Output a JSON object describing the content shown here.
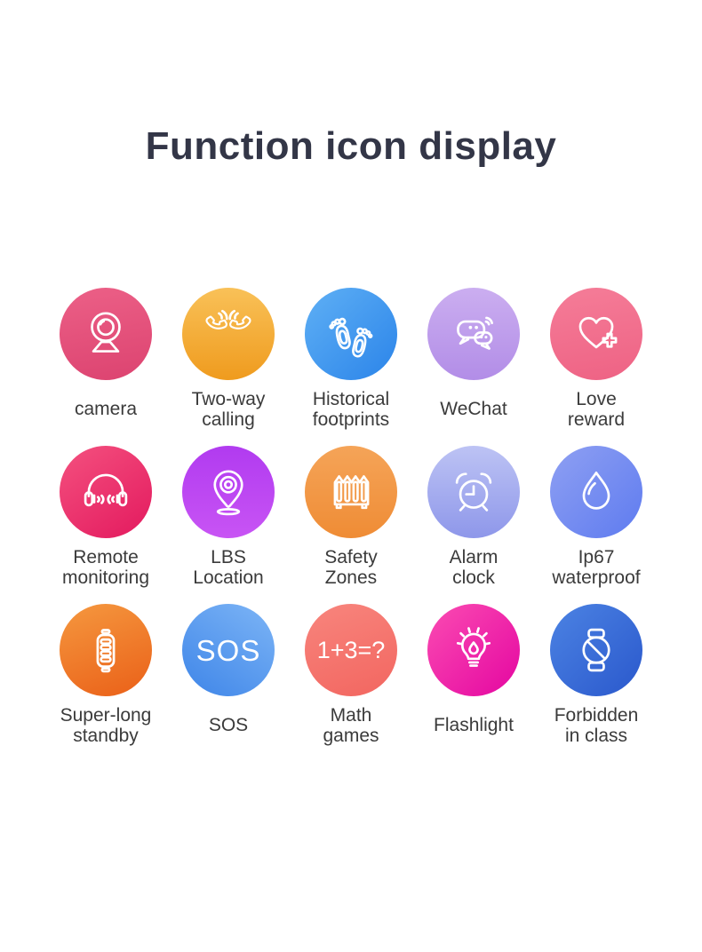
{
  "title": "Function icon display",
  "colors": {
    "background": "#ffffff",
    "title_text": "#333647",
    "label_text": "#3b3b3b",
    "icon_stroke": "#ffffff"
  },
  "functions": [
    {
      "id": "camera",
      "label_lines": [
        "camera"
      ],
      "icon": "webcam-icon",
      "gradient": {
        "from": "#ec6087",
        "to": "#dc4370",
        "angle": 170
      }
    },
    {
      "id": "two-way-calling",
      "label_lines": [
        "Two-way",
        "calling"
      ],
      "icon": "phone-handsets-icon",
      "gradient": {
        "from": "#f9c158",
        "to": "#ef9b1e",
        "angle": 180
      }
    },
    {
      "id": "historical-footprints",
      "label_lines": [
        "Historical",
        "footprints"
      ],
      "icon": "footprints-icon",
      "gradient": {
        "from": "#5fb0f5",
        "to": "#2b84e9",
        "angle": 135
      }
    },
    {
      "id": "wechat",
      "label_lines": [
        "WeChat"
      ],
      "icon": "chat-bubbles-icon",
      "gradient": {
        "from": "#cbaef0",
        "to": "#b28de7",
        "angle": 180
      }
    },
    {
      "id": "love-reward",
      "label_lines": [
        "Love",
        "reward"
      ],
      "icon": "heart-plus-icon",
      "gradient": {
        "from": "#f57d98",
        "to": "#ee6284",
        "angle": 170
      }
    },
    {
      "id": "remote-monitoring",
      "label_lines": [
        "Remote",
        "monitoring"
      ],
      "icon": "headphones-icon",
      "gradient": {
        "from": "#f4517f",
        "to": "#e3195e",
        "angle": 145
      }
    },
    {
      "id": "lbs-location",
      "label_lines": [
        "LBS",
        "Location"
      ],
      "icon": "location-pin-icon",
      "gradient": {
        "from": "#b13bf0",
        "to": "#c854f4",
        "angle": 180
      }
    },
    {
      "id": "safety-zones",
      "label_lines": [
        "Safety",
        "Zones"
      ],
      "icon": "fence-icon",
      "gradient": {
        "from": "#f5a458",
        "to": "#ef8c35",
        "angle": 180
      }
    },
    {
      "id": "alarm-clock",
      "label_lines": [
        "Alarm",
        "clock"
      ],
      "icon": "alarm-clock-icon",
      "gradient": {
        "from": "#bdc3f4",
        "to": "#8e97ea",
        "angle": 180
      }
    },
    {
      "id": "ip67-waterproof",
      "label_lines": [
        "Ip67",
        "waterproof"
      ],
      "icon": "water-drop-icon",
      "gradient": {
        "from": "#8fa0f2",
        "to": "#5e7bf0",
        "angle": 135
      }
    },
    {
      "id": "super-long-standby",
      "label_lines": [
        "Super-long",
        "standby"
      ],
      "icon": "battery-icon",
      "gradient": {
        "from": "#f5983f",
        "to": "#ea6018",
        "angle": 160
      }
    },
    {
      "id": "sos",
      "label_lines": [
        "SOS"
      ],
      "icon": "sos-text",
      "icon_text": "SOS",
      "gradient": {
        "from": "#7db5f6",
        "to": "#3e85e8",
        "angle": 215
      }
    },
    {
      "id": "math-games",
      "label_lines": [
        "Math",
        "games"
      ],
      "icon": "math-equation-text",
      "icon_text": "1+3=?",
      "gradient": {
        "from": "#f8857d",
        "to": "#f26660",
        "angle": 160
      }
    },
    {
      "id": "flashlight",
      "label_lines": [
        "Flashlight"
      ],
      "icon": "lightbulb-icon",
      "gradient": {
        "from": "#fb4cb2",
        "to": "#e406a1",
        "angle": 135
      }
    },
    {
      "id": "forbidden-in-class",
      "label_lines": [
        "Forbidden",
        "in class"
      ],
      "icon": "watch-forbidden-icon",
      "gradient": {
        "from": "#4c83e3",
        "to": "#2a58cc",
        "angle": 135
      }
    }
  ]
}
